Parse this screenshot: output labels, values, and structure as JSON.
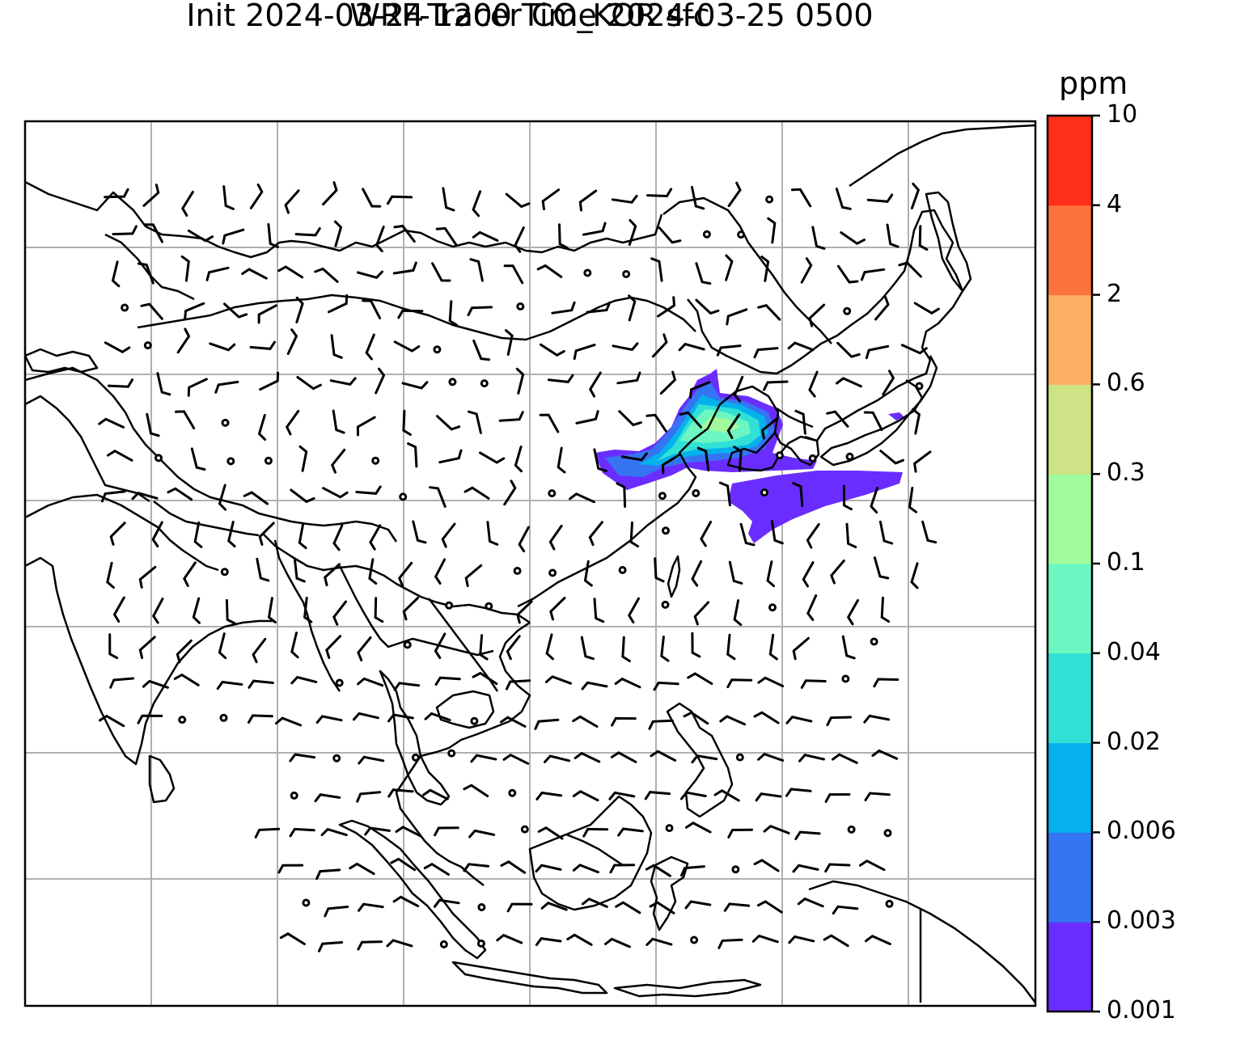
{
  "title": {
    "line1": "WRF-Tracer CO_KOR sfc",
    "line2": "Init 2024-03-24 1200 Time 2024-03-25 0500"
  },
  "colorbar": {
    "unit": "ppm",
    "levels": [
      "0.001",
      "0.003",
      "0.006",
      "0.02",
      "0.04",
      "0.1",
      "0.3",
      "0.6",
      "2",
      "4",
      "10"
    ],
    "colors": [
      "#6a2dff",
      "#3575f2",
      "#05b1ec",
      "#31e1d6",
      "#6cf7c2",
      "#a1fb9d",
      "#cde385",
      "#fdb063",
      "#fd733e",
      "#ff2f1a"
    ]
  },
  "map": {
    "gridlines": true,
    "plume_color": "#6a2dff",
    "wind_symbols": "barbs",
    "features": [
      "coastlines",
      "country borders",
      "tracer concentration",
      "wind barbs",
      "calm circles"
    ]
  }
}
